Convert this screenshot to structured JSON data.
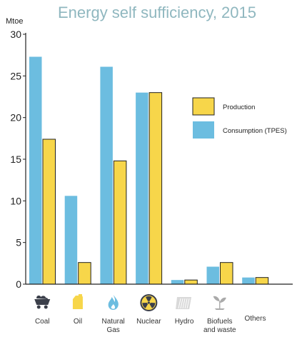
{
  "chart_data": {
    "type": "bar",
    "title": "Energy self sufficiency, 2015",
    "ylabel": "Mtoe",
    "ylim": [
      0,
      30
    ],
    "yticks": [
      "0",
      "5",
      "10",
      "15",
      "20",
      "25",
      "30"
    ],
    "categories": [
      {
        "label": [
          "Coal"
        ],
        "icon": "coal-cart-icon"
      },
      {
        "label": [
          "Oil"
        ],
        "icon": "oil-can-icon"
      },
      {
        "label": [
          "Natural",
          "Gas"
        ],
        "icon": "gas-flame-icon"
      },
      {
        "label": [
          "Nuclear"
        ],
        "icon": "nuclear-icon"
      },
      {
        "label": [
          "Hydro"
        ],
        "icon": "hydro-dam-icon"
      },
      {
        "label": [
          "Biofuels",
          "and waste"
        ],
        "icon": "biofuel-sprout-icon"
      },
      {
        "label": [
          "Others"
        ],
        "icon": ""
      }
    ],
    "series": [
      {
        "name": "Consumption (TPES)",
        "color": "#6cbde0",
        "values": [
          27.3,
          10.6,
          26.1,
          23.0,
          0.5,
          2.1,
          0.8
        ]
      },
      {
        "name": "Production",
        "color": "#f7d64a",
        "values": [
          17.4,
          2.6,
          14.8,
          23.0,
          0.5,
          2.6,
          0.8
        ]
      }
    ],
    "legend": {
      "position": "right",
      "order": [
        "Production",
        "Consumption (TPES)"
      ]
    }
  }
}
